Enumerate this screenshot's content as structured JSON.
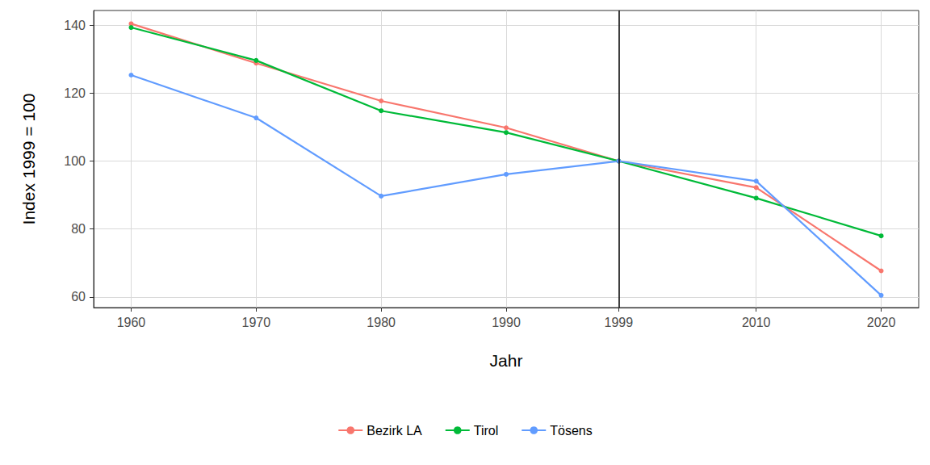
{
  "chart_data": {
    "type": "line",
    "x_label": "Jahr",
    "y_label": "Index 1999 = 100",
    "x": [
      1960,
      1970,
      1980,
      1990,
      1999,
      2010,
      2020
    ],
    "series": [
      {
        "name": "Bezirk LA",
        "color": "#F8766D",
        "values": [
          140.4,
          128.8,
          117.7,
          109.8,
          100,
          92.2,
          67.7
        ]
      },
      {
        "name": "Tirol",
        "color": "#00BA38",
        "values": [
          139.3,
          129.6,
          114.8,
          108.4,
          100,
          89.1,
          78.0
        ]
      },
      {
        "name": "Tösens",
        "color": "#619CFF",
        "values": [
          125.3,
          112.7,
          89.7,
          96.1,
          100,
          94.1,
          60.5
        ]
      }
    ],
    "xlim": [
      1957,
      2023
    ],
    "xticks": [
      1960,
      1970,
      1980,
      1990,
      1999,
      2010,
      2020
    ],
    "ylim": [
      56.9,
      144.3
    ],
    "yticks": [
      60,
      80,
      100,
      120,
      140
    ],
    "vlines": [
      1999
    ],
    "grid": true,
    "legend": "bottom",
    "marker": "circle"
  }
}
